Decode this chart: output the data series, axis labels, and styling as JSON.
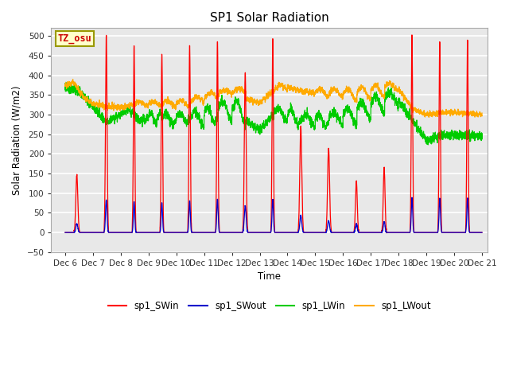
{
  "title": "SP1 Solar Radiation",
  "ylabel": "Solar Radiation (W/m2)",
  "xlabel": "Time",
  "ylim": [
    -50,
    520
  ],
  "xlim_start": 5.5,
  "xlim_end": 21.2,
  "xtick_labels": [
    "Dec 6",
    "Dec 7",
    "Dec 8",
    "Dec 9",
    "Dec 10",
    "Dec 11",
    "Dec 12",
    "Dec 13",
    "Dec 14",
    "Dec 15",
    "Dec 16",
    "Dec 17",
    "Dec 18",
    "Dec 19",
    "Dec 20",
    "Dec 21"
  ],
  "xtick_positions": [
    6,
    7,
    8,
    9,
    10,
    11,
    12,
    13,
    14,
    15,
    16,
    17,
    18,
    19,
    20,
    21
  ],
  "colors": {
    "SWin": "#ff0000",
    "SWout": "#0000cc",
    "LWin": "#00cc00",
    "LWout": "#ffaa00"
  },
  "legend_labels": [
    "sp1_SWin",
    "sp1_SWout",
    "sp1_LWin",
    "sp1_LWout"
  ],
  "annotation_text": "TZ_osu",
  "annotation_box_color": "#ffffcc",
  "annotation_box_edge": "#999900",
  "annotation_text_color": "#cc0000",
  "background_color": "#e8e8e8",
  "grid_color": "#ffffff",
  "fig_bg": "#ffffff"
}
